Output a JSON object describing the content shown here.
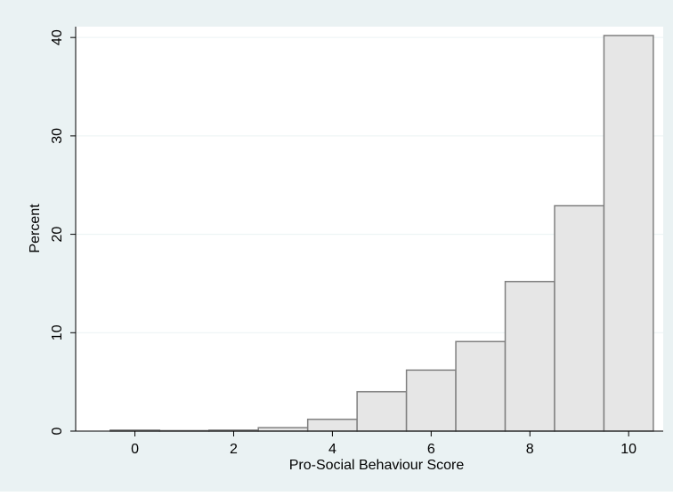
{
  "chart_data": {
    "type": "histogram",
    "x_label": "Pro-Social Behaviour Score",
    "y_label": "Percent",
    "bins": [
      -0.5,
      0.5,
      1.5,
      2.5,
      3.5,
      4.5,
      5.5,
      6.5,
      7.5,
      8.5,
      9.5,
      10.5
    ],
    "values": [
      0.1,
      0.05,
      0.1,
      0.35,
      1.2,
      4.0,
      6.2,
      9.1,
      15.2,
      22.9,
      40.2
    ],
    "color": "#e6e6e6",
    "edge_color": "#808080",
    "xlim": [
      -1.2,
      10.7
    ],
    "ylim": [
      0,
      41.1
    ],
    "xticks": [
      0,
      2,
      4,
      6,
      8,
      10
    ],
    "yticks": [
      0,
      10,
      20,
      30,
      40
    ],
    "grid": true
  }
}
